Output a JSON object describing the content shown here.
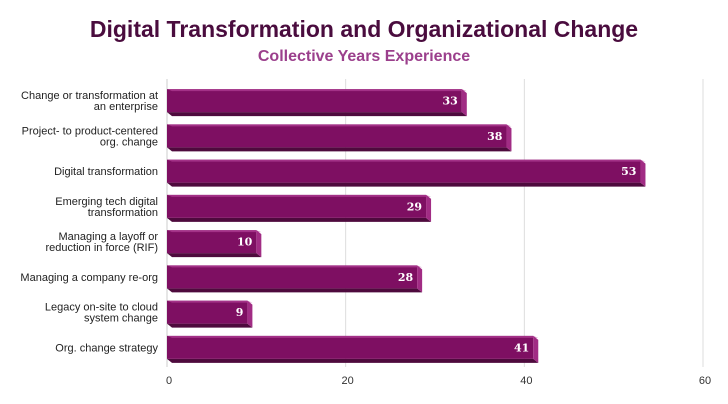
{
  "chart_data": {
    "type": "bar",
    "orientation": "horizontal",
    "title": "Digital Transformation and Organizational Change",
    "subtitle": "Collective Years Experience",
    "categories": [
      [
        "Change or transformation at",
        "an enterprise"
      ],
      [
        "Project- to product-centered",
        "org. change"
      ],
      [
        "Digital transformation"
      ],
      [
        "Emerging tech digital",
        "transformation"
      ],
      [
        "Managing a layoff or",
        "reduction in force (RIF)"
      ],
      [
        "Managing a company re-org"
      ],
      [
        "Legacy on-site to cloud",
        "system change"
      ],
      [
        "Org. change strategy"
      ]
    ],
    "values": [
      33,
      38,
      53,
      29,
      10,
      28,
      9,
      41
    ],
    "xlim": [
      0,
      60
    ],
    "xticks": [
      0,
      20,
      40,
      60
    ],
    "grid": true,
    "bar_color": "#7e0f62",
    "bar_top_color": "#c14fa5",
    "bar_side_color": "#a12c84",
    "bar_bottom_color": "#4e0a3d"
  }
}
